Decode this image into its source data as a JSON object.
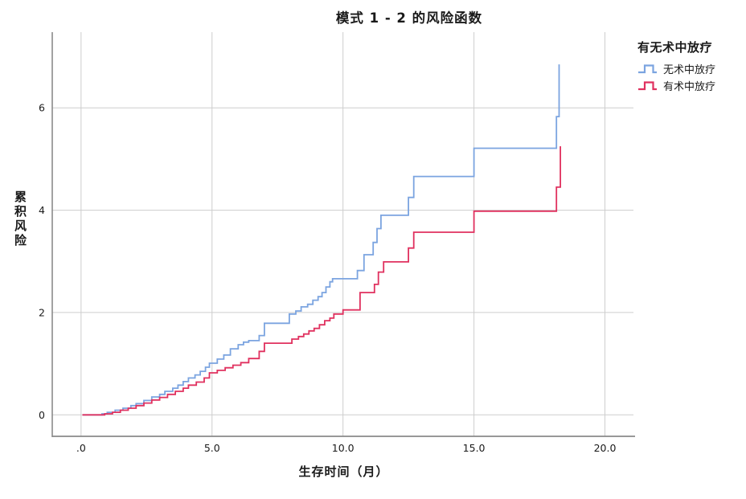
{
  "chart_data": {
    "type": "line",
    "subtype": "step-post",
    "title": "模式 1 - 2 的风险函数",
    "xlabel": "生存时间（月）",
    "ylabel": "累积风险",
    "xlim": [
      -1.1,
      21.15
    ],
    "ylim": [
      -0.42,
      7.48
    ],
    "x_ticks": [
      0,
      5,
      10,
      15,
      20
    ],
    "x_tick_labels": [
      ".0",
      "5.0",
      "10.0",
      "15.0",
      "20.0"
    ],
    "y_ticks": [
      0,
      2,
      4,
      6
    ],
    "y_tick_labels": [
      "0",
      "2",
      "4",
      "6"
    ],
    "grid": true,
    "legend_title": "有无术中放疗",
    "legend_position": "top-right-outside",
    "colors": {
      "gridline": "#cdcdcd",
      "axis_line": "#8a8a8a",
      "text": "#1a1a1a"
    },
    "series": [
      {
        "name": "无术中放疗",
        "color": "#7BA4E0",
        "points": [
          [
            0.05,
            0
          ],
          [
            0.8,
            0.02
          ],
          [
            1.0,
            0.05
          ],
          [
            1.3,
            0.09
          ],
          [
            1.6,
            0.13
          ],
          [
            1.9,
            0.18
          ],
          [
            2.1,
            0.22
          ],
          [
            2.4,
            0.28
          ],
          [
            2.7,
            0.35
          ],
          [
            3.0,
            0.4
          ],
          [
            3.2,
            0.46
          ],
          [
            3.5,
            0.52
          ],
          [
            3.7,
            0.58
          ],
          [
            3.9,
            0.65
          ],
          [
            4.1,
            0.72
          ],
          [
            4.35,
            0.78
          ],
          [
            4.55,
            0.85
          ],
          [
            4.75,
            0.93
          ],
          [
            4.9,
            1.01
          ],
          [
            5.2,
            1.09
          ],
          [
            5.45,
            1.17
          ],
          [
            5.7,
            1.29
          ],
          [
            6.0,
            1.37
          ],
          [
            6.2,
            1.42
          ],
          [
            6.4,
            1.45
          ],
          [
            6.8,
            1.55
          ],
          [
            7.0,
            1.79
          ],
          [
            7.95,
            1.97
          ],
          [
            8.2,
            2.03
          ],
          [
            8.4,
            2.11
          ],
          [
            8.65,
            2.16
          ],
          [
            8.85,
            2.24
          ],
          [
            9.05,
            2.31
          ],
          [
            9.2,
            2.39
          ],
          [
            9.35,
            2.5
          ],
          [
            9.5,
            2.6
          ],
          [
            9.6,
            2.66
          ],
          [
            10.55,
            2.82
          ],
          [
            10.8,
            3.13
          ],
          [
            11.15,
            3.37
          ],
          [
            11.3,
            3.64
          ],
          [
            11.45,
            3.9
          ],
          [
            12.5,
            4.25
          ],
          [
            12.7,
            4.66
          ],
          [
            15.0,
            5.21
          ],
          [
            18.15,
            5.83
          ],
          [
            18.25,
            6.85
          ]
        ]
      },
      {
        "name": "有术中放疗",
        "color": "#E0315F",
        "points": [
          [
            0.05,
            0
          ],
          [
            0.9,
            0.02
          ],
          [
            1.2,
            0.05
          ],
          [
            1.5,
            0.09
          ],
          [
            1.8,
            0.13
          ],
          [
            2.1,
            0.18
          ],
          [
            2.4,
            0.23
          ],
          [
            2.7,
            0.29
          ],
          [
            3.0,
            0.34
          ],
          [
            3.3,
            0.4
          ],
          [
            3.6,
            0.46
          ],
          [
            3.9,
            0.52
          ],
          [
            4.1,
            0.58
          ],
          [
            4.4,
            0.64
          ],
          [
            4.7,
            0.72
          ],
          [
            4.9,
            0.82
          ],
          [
            5.2,
            0.87
          ],
          [
            5.5,
            0.92
          ],
          [
            5.8,
            0.97
          ],
          [
            6.1,
            1.02
          ],
          [
            6.4,
            1.1
          ],
          [
            6.8,
            1.24
          ],
          [
            7.0,
            1.4
          ],
          [
            8.05,
            1.48
          ],
          [
            8.3,
            1.53
          ],
          [
            8.5,
            1.58
          ],
          [
            8.7,
            1.64
          ],
          [
            8.9,
            1.69
          ],
          [
            9.1,
            1.76
          ],
          [
            9.3,
            1.84
          ],
          [
            9.5,
            1.89
          ],
          [
            9.65,
            1.97
          ],
          [
            10.0,
            2.05
          ],
          [
            10.65,
            2.39
          ],
          [
            11.2,
            2.55
          ],
          [
            11.35,
            2.79
          ],
          [
            11.55,
            2.99
          ],
          [
            12.5,
            3.26
          ],
          [
            12.7,
            3.57
          ],
          [
            15.0,
            3.98
          ],
          [
            18.15,
            4.45
          ],
          [
            18.3,
            5.25
          ]
        ]
      }
    ]
  }
}
